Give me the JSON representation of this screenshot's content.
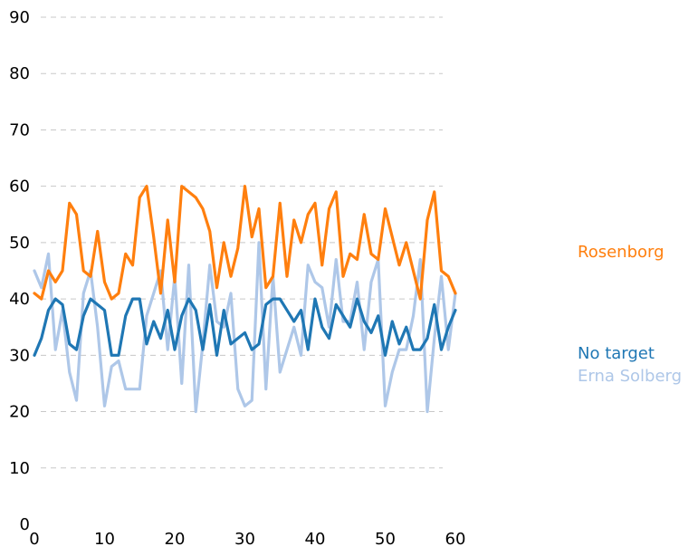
{
  "chart_data": {
    "type": "line",
    "title": "",
    "xlabel": "",
    "ylabel": "",
    "xlim": [
      0,
      60
    ],
    "ylim": [
      0,
      90
    ],
    "x_ticks": [
      0,
      10,
      20,
      30,
      40,
      50,
      60
    ],
    "y_ticks": [
      0,
      10,
      20,
      30,
      40,
      50,
      60,
      70,
      80,
      90
    ],
    "grid": "horizontal dashed",
    "legend": "right",
    "series": [
      {
        "name": "Erna Solberg",
        "color": "#aec7e8",
        "values": [
          45,
          42,
          48,
          31,
          38,
          27,
          22,
          41,
          45,
          35,
          21,
          28,
          29,
          24,
          24,
          24,
          37,
          41,
          45,
          31,
          44,
          25,
          46,
          20,
          32,
          46,
          36,
          35,
          41,
          24,
          21,
          22,
          50,
          24,
          44,
          27,
          31,
          35,
          30,
          46,
          43,
          42,
          35,
          47,
          36,
          36,
          43,
          31,
          43,
          47,
          21,
          27,
          31,
          31,
          37,
          47,
          20,
          33,
          44,
          31,
          41
        ]
      },
      {
        "name": "No target",
        "color": "#1f77b4",
        "values": [
          30,
          33,
          38,
          40,
          39,
          32,
          31,
          37,
          40,
          39,
          38,
          30,
          30,
          37,
          40,
          40,
          32,
          36,
          33,
          38,
          31,
          37,
          40,
          38,
          31,
          39,
          30,
          38,
          32,
          33,
          34,
          31,
          32,
          39,
          40,
          40,
          38,
          36,
          38,
          31,
          40,
          35,
          33,
          39,
          37,
          35,
          40,
          36,
          34,
          37,
          30,
          36,
          32,
          35,
          31,
          31,
          33,
          39,
          31,
          35,
          38
        ]
      },
      {
        "name": "Rosenborg",
        "color": "#ff7f0e",
        "values": [
          41,
          40,
          45,
          43,
          45,
          57,
          55,
          45,
          44,
          52,
          43,
          40,
          41,
          48,
          46,
          58,
          60,
          51,
          41,
          54,
          43,
          60,
          59,
          58,
          56,
          52,
          42,
          50,
          44,
          49,
          60,
          51,
          56,
          42,
          44,
          57,
          44,
          54,
          50,
          55,
          57,
          46,
          56,
          59,
          44,
          48,
          47,
          55,
          48,
          47,
          56,
          51,
          46,
          50,
          45,
          40,
          54,
          59,
          45,
          44,
          41
        ]
      }
    ]
  }
}
